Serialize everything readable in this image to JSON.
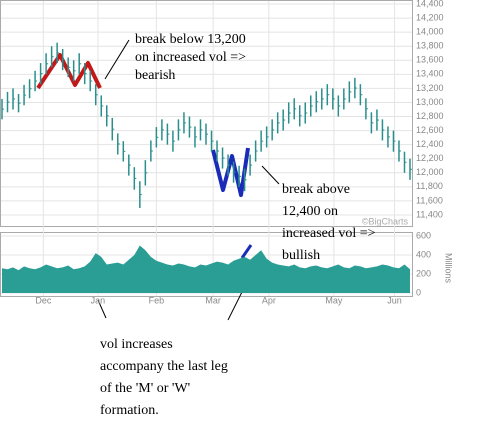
{
  "chart_data": [
    {
      "type": "range-bar",
      "color": "#2a8f8c",
      "high": [
        13050,
        13150,
        13200,
        13120,
        13250,
        13330,
        13450,
        13560,
        13700,
        13800,
        13850,
        13760,
        13640,
        13600,
        13700,
        13560,
        13450,
        13260,
        13100,
        12960,
        12780,
        12560,
        12450,
        12260,
        12080,
        11880,
        12180,
        12460,
        12650,
        12760,
        12700,
        12600,
        12760,
        12860,
        12800,
        12660,
        12760,
        12700,
        12600,
        12460,
        12360,
        12260,
        12160,
        12100,
        12060,
        12260,
        12460,
        12600,
        12660,
        12760,
        12860,
        12900,
        13000,
        13060,
        12960,
        13000,
        13100,
        13160,
        13200,
        13260,
        13200,
        13100,
        13200,
        13300,
        13350,
        13260,
        13060,
        12860,
        12900,
        12760,
        12660,
        12600,
        12460,
        12300,
        12200
      ],
      "low": [
        12760,
        12860,
        12900,
        12860,
        12960,
        13060,
        13160,
        13260,
        13400,
        13500,
        13560,
        13460,
        13360,
        13300,
        13400,
        13260,
        13160,
        12960,
        12800,
        12660,
        12460,
        12260,
        12160,
        11960,
        11760,
        11500,
        11820,
        12160,
        12360,
        12460,
        12400,
        12300,
        12460,
        12560,
        12500,
        12360,
        12460,
        12400,
        12300,
        12160,
        12060,
        11960,
        11860,
        11800,
        11740,
        11960,
        12160,
        12300,
        12360,
        12460,
        12560,
        12600,
        12700,
        12760,
        12660,
        12700,
        12800,
        12860,
        12900,
        12960,
        12900,
        12800,
        12900,
        13000,
        13060,
        12960,
        12760,
        12560,
        12600,
        12460,
        12360,
        12300,
        12160,
        12000,
        11900
      ],
      "ylim": [
        11400,
        14400
      ],
      "yticks": [
        {
          "value": 11400,
          "label": "11,400"
        },
        {
          "value": 11600,
          "label": "11,600"
        },
        {
          "value": 11800,
          "label": "11,800"
        },
        {
          "value": 12000,
          "label": "12,000"
        },
        {
          "value": 12200,
          "label": "12,200"
        },
        {
          "value": 12400,
          "label": "12,400"
        },
        {
          "value": 12600,
          "label": "12,600"
        },
        {
          "value": 12800,
          "label": "12,800"
        },
        {
          "value": 13000,
          "label": "13,000"
        },
        {
          "value": 13200,
          "label": "13,200"
        },
        {
          "value": 13400,
          "label": "13,400"
        },
        {
          "value": 13600,
          "label": "13,600"
        },
        {
          "value": 13800,
          "label": "13,800"
        },
        {
          "value": 14000,
          "label": "14,000"
        },
        {
          "value": 14200,
          "label": "14,200"
        },
        {
          "value": 14400,
          "label": "14,400"
        }
      ],
      "watermark": "©BigCharts"
    },
    {
      "type": "area",
      "color": "#2a9d94",
      "values": [
        260,
        250,
        270,
        240,
        280,
        260,
        250,
        270,
        300,
        280,
        260,
        270,
        290,
        250,
        260,
        280,
        330,
        420,
        380,
        300,
        310,
        320,
        300,
        350,
        400,
        500,
        450,
        380,
        340,
        320,
        300,
        290,
        310,
        300,
        280,
        270,
        300,
        290,
        310,
        330,
        320,
        300,
        340,
        360,
        380,
        350,
        400,
        450,
        360,
        320,
        300,
        290,
        280,
        300,
        270,
        260,
        280,
        290,
        270,
        260,
        280,
        300,
        270,
        260,
        290,
        280,
        260,
        270,
        280,
        300,
        290,
        270,
        260,
        300,
        250
      ],
      "xlim": [
        0,
        74
      ],
      "xticks": [
        {
          "value": 7.5,
          "label": "Dec"
        },
        {
          "value": 17.4,
          "label": "Jan"
        },
        {
          "value": 28,
          "label": "Feb"
        },
        {
          "value": 38.3,
          "label": "Mar"
        },
        {
          "value": 48.4,
          "label": "Apr"
        },
        {
          "value": 60.2,
          "label": "May"
        },
        {
          "value": 71.2,
          "label": "Jun"
        }
      ],
      "ylim": [
        0,
        600
      ],
      "yticks": [
        0,
        200,
        400,
        600
      ],
      "y_label": "Millions"
    }
  ],
  "annotations": [
    [
      "break below 13,200",
      "on increased vol =>",
      "bearish"
    ],
    [
      "break above",
      "12,400 on",
      "increased vol =>",
      "bullish"
    ],
    [
      "vol increases",
      "accompany the last leg",
      "of the 'M' or 'W'",
      "formation."
    ]
  ]
}
